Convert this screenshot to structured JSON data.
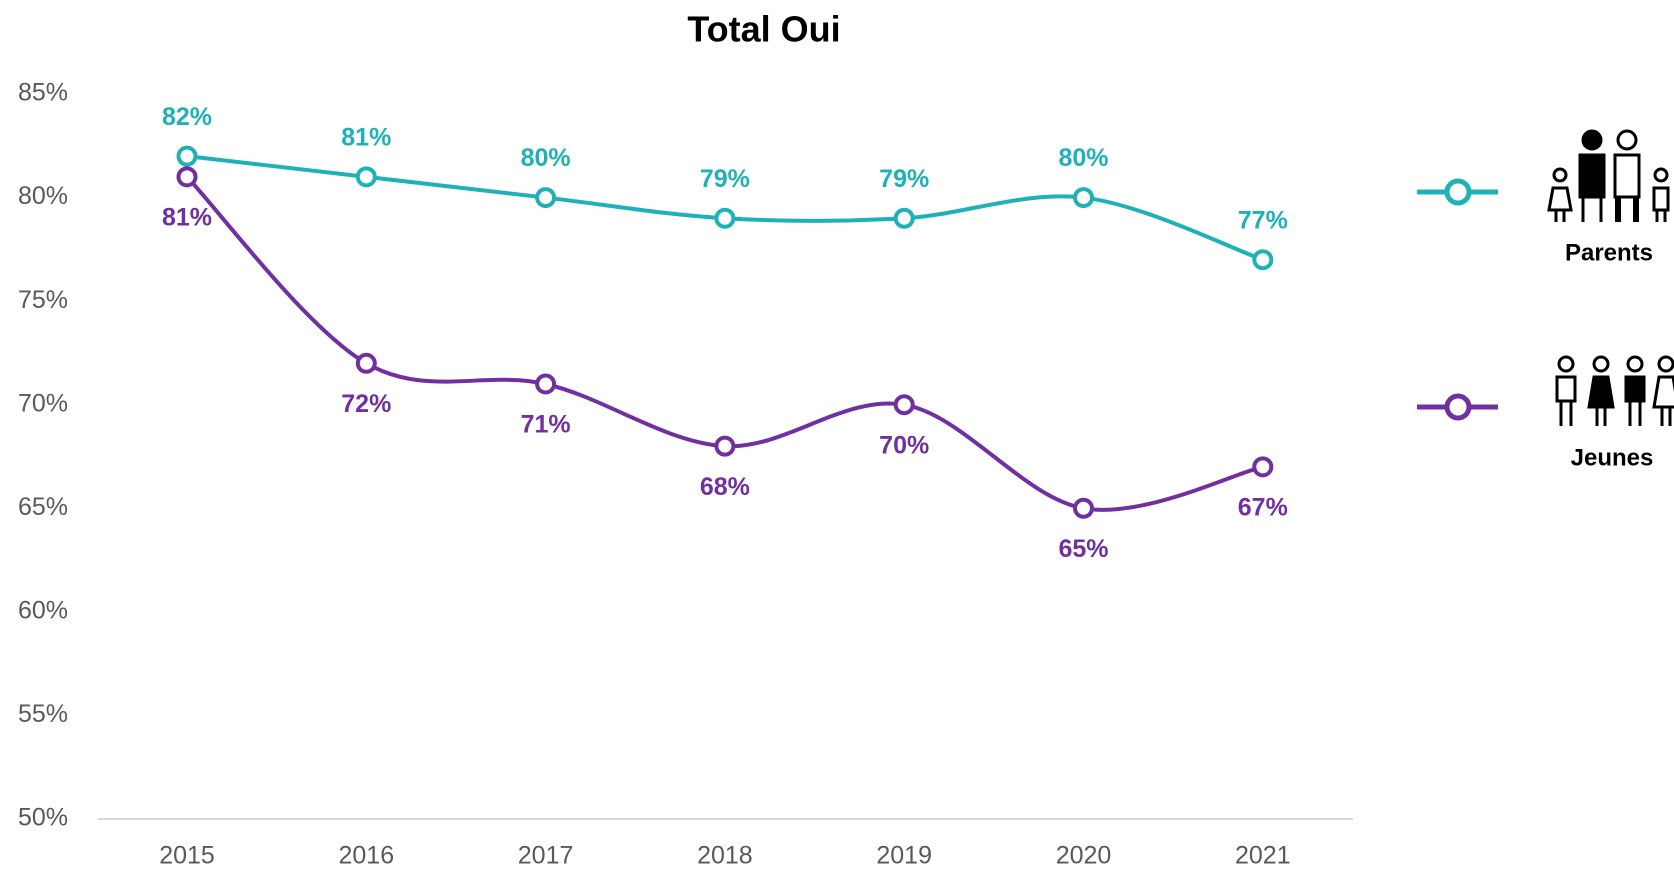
{
  "chart_data": {
    "type": "line",
    "title": "Total Oui",
    "categories": [
      "2015",
      "2016",
      "2017",
      "2018",
      "2019",
      "2020",
      "2021"
    ],
    "series": [
      {
        "name": "Parents",
        "color": "#1eb1b7",
        "values": [
          82,
          81,
          80,
          79,
          79,
          80,
          77
        ],
        "value_labels": [
          "82%",
          "81%",
          "80%",
          "79%",
          "79%",
          "80%",
          "77%"
        ]
      },
      {
        "name": "Jeunes",
        "color": "#7030a0",
        "values": [
          81,
          72,
          71,
          68,
          70,
          65,
          67
        ],
        "value_labels": [
          "81%",
          "72%",
          "71%",
          "68%",
          "70%",
          "65%",
          "67%"
        ]
      }
    ],
    "ylim": [
      50,
      85
    ],
    "yticks": [
      {
        "value": 50,
        "label": "50%"
      },
      {
        "value": 55,
        "label": "55%"
      },
      {
        "value": 60,
        "label": "60%"
      },
      {
        "value": 65,
        "label": "65%"
      },
      {
        "value": 70,
        "label": "70%"
      },
      {
        "value": 75,
        "label": "75%"
      },
      {
        "value": 80,
        "label": "80%"
      },
      {
        "value": 85,
        "label": "85%"
      }
    ],
    "grid": false,
    "smooth": true,
    "legend": "right"
  }
}
